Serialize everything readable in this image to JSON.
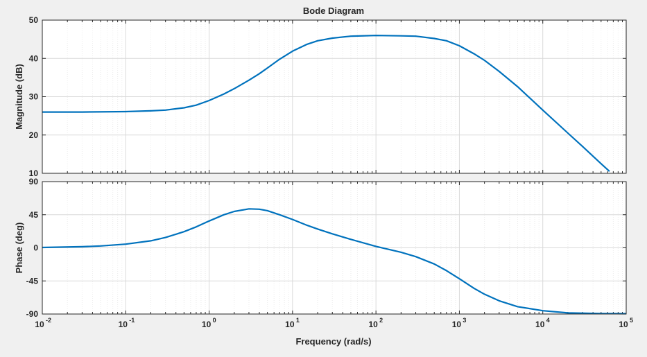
{
  "chart_data": {
    "type": "line",
    "title": "Bode Diagram",
    "xlabel": "Frequency  (rad/s)",
    "x_scale": "log",
    "xlim": [
      0.01,
      100000
    ],
    "x_ticks": [
      {
        "base": "10",
        "exp": "-2"
      },
      {
        "base": "10",
        "exp": "-1"
      },
      {
        "base": "10",
        "exp": "0"
      },
      {
        "base": "10",
        "exp": "1"
      },
      {
        "base": "10",
        "exp": "2"
      },
      {
        "base": "10",
        "exp": "3"
      },
      {
        "base": "10",
        "exp": "4"
      },
      {
        "base": "10",
        "exp": "5"
      }
    ],
    "grid": true,
    "line_color": "#0072BD",
    "background": "#ffffff",
    "panels": [
      {
        "ylabel": "Magnitude (dB)",
        "ylim": [
          10,
          50
        ],
        "y_ticks": [
          "10",
          "20",
          "30",
          "40",
          "50"
        ],
        "series": [
          {
            "x": [
              0.01,
              0.03,
              0.1,
              0.2,
              0.3,
              0.5,
              0.7,
              1,
              1.5,
              2,
              3,
              4,
              5,
              7,
              10,
              15,
              20,
              30,
              50,
              100,
              200,
              300,
              500,
              700,
              1000,
              1500,
              2000,
              3000,
              5000,
              10000,
              20000,
              30000,
              50000,
              63000
            ],
            "y": [
              26,
              26,
              26.1,
              26.3,
              26.5,
              27.1,
              27.8,
              29,
              30.7,
              32.1,
              34.3,
              36,
              37.5,
              39.8,
              41.9,
              43.7,
              44.6,
              45.3,
              45.8,
              46,
              45.9,
              45.8,
              45.2,
              44.6,
              43.3,
              41.2,
              39.5,
              36.6,
              32.6,
              26.5,
              20.5,
              17,
              12.5,
              10.5
            ]
          }
        ]
      },
      {
        "ylabel": "Phase (deg)",
        "ylim": [
          -90,
          90
        ],
        "y_ticks": [
          "-90",
          "-45",
          "0",
          "45",
          "90"
        ],
        "series": [
          {
            "x": [
              0.01,
              0.03,
              0.05,
              0.1,
              0.2,
              0.3,
              0.5,
              0.7,
              1,
              1.5,
              2,
              3,
              4,
              5,
              7,
              10,
              15,
              20,
              30,
              50,
              100,
              200,
              300,
              500,
              700,
              1000,
              1500,
              2000,
              3000,
              5000,
              10000,
              20000,
              50000,
              100000
            ],
            "y": [
              0.5,
              1.5,
              2.5,
              5,
              9.5,
              14,
              22,
              28.5,
              36.5,
              45,
              49.5,
              53,
              52.5,
              50.5,
              45,
              38.5,
              30.5,
              25.5,
              19,
              11.5,
              2,
              -6,
              -12,
              -22,
              -31,
              -42,
              -55,
              -63,
              -72,
              -80,
              -85.5,
              -88.5,
              -89.3,
              -89.5
            ]
          }
        ]
      }
    ]
  }
}
